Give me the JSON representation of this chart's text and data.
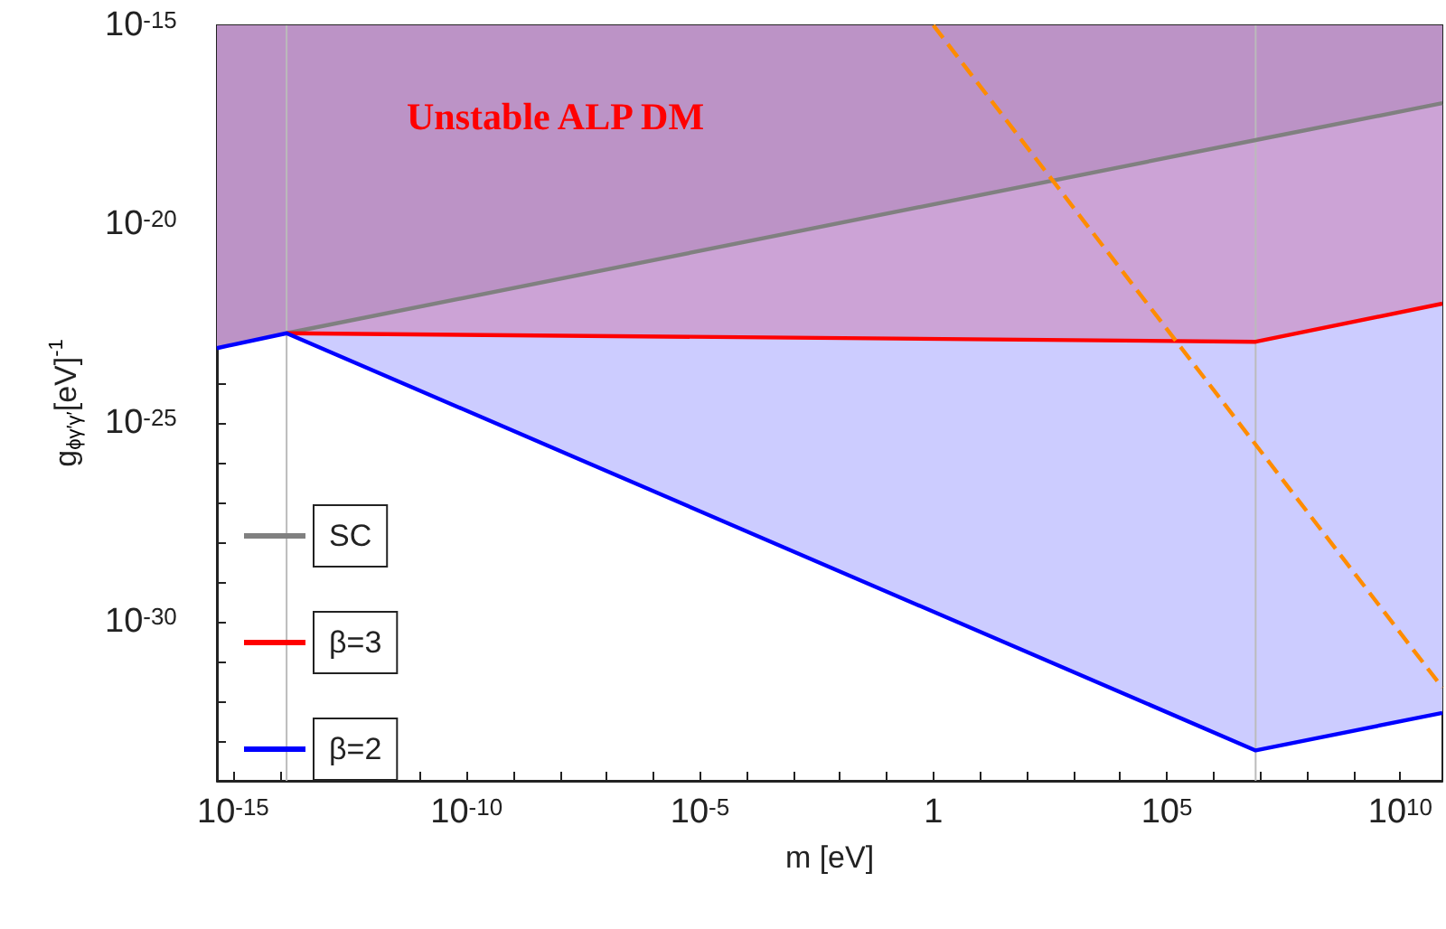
{
  "chart_data": {
    "type": "line",
    "xlabel": "m [eV]",
    "ylabel": "g$_{ϕγ′γ′}$[eV]$^{-1}$",
    "annotations": [
      "Unstable ALP DM"
    ],
    "log": "xy",
    "xlim": [
      4.5e-16,
      80000000000.0
    ],
    "ylim": [
      1e-34,
      1e-15
    ],
    "xticks": [
      {
        "value": 1e-15,
        "label": "10$^{-15}$"
      },
      {
        "value": 1e-14,
        "label": null
      },
      {
        "value": 1e-13,
        "label": null
      },
      {
        "value": 1e-12,
        "label": null
      },
      {
        "value": 1e-11,
        "label": null
      },
      {
        "value": 1e-10,
        "label": "10$^{-10}$"
      },
      {
        "value": 1e-09,
        "label": null
      },
      {
        "value": 1e-08,
        "label": null
      },
      {
        "value": 1e-07,
        "label": null
      },
      {
        "value": 1e-06,
        "label": null
      },
      {
        "value": 1e-05,
        "label": "10$^{-5}$"
      },
      {
        "value": 0.0001,
        "label": null
      },
      {
        "value": 0.001,
        "label": null
      },
      {
        "value": 0.01,
        "label": null
      },
      {
        "value": 0.1,
        "label": null
      },
      1,
      {
        "value": 10,
        "label": null
      },
      {
        "value": 100,
        "label": null
      },
      {
        "value": 1000,
        "label": null
      },
      {
        "value": 10000,
        "label": null
      },
      {
        "value": 100000.0,
        "label": "10$^{5}$"
      },
      {
        "value": 1000000.0,
        "label": null
      },
      {
        "value": 10000000.0,
        "label": null
      },
      {
        "value": 100000000.0,
        "label": null
      },
      {
        "value": 1000000000.0,
        "label": null
      },
      {
        "value": 10000000000.0,
        "label": "10$^{10}$"
      }
    ],
    "yticks": [
      {
        "value": 1e-34,
        "label": null
      },
      {
        "value": 1e-33,
        "label": null
      },
      {
        "value": 1e-32,
        "label": null
      },
      {
        "value": 1e-31,
        "label": null
      },
      {
        "value": 1e-30,
        "label": "10$^{-30}$"
      },
      {
        "value": 1e-29,
        "label": null
      },
      {
        "value": 1e-28,
        "label": null
      },
      {
        "value": 1e-27,
        "label": null
      },
      {
        "value": 1e-26,
        "label": null
      },
      {
        "value": 1e-25,
        "label": "10$^{-25}$"
      },
      {
        "value": 1e-24,
        "label": null
      },
      {
        "value": 1e-23,
        "label": null
      },
      {
        "value": 1e-22,
        "label": null
      },
      {
        "value": 1e-21,
        "label": null
      },
      {
        "value": 1e-20,
        "label": "10$^{-20}$"
      },
      {
        "value": 1e-19,
        "label": null
      },
      {
        "value": 1e-18,
        "label": null
      },
      {
        "value": 1e-17,
        "label": null
      },
      {
        "value": 1e-16,
        "label": null
      },
      {
        "value": 1e-15,
        "label": "10$^{-15}$"
      }
    ],
    "grid": false,
    "legend": "left",
    "ref_lines": [
      {
        "axis": "x",
        "value": 1.4e-14,
        "color": "#bbbbbb"
      },
      {
        "axis": "x",
        "value": 8000000.0,
        "color": "#bbbbbb"
      }
    ],
    "series": [
      {
        "name": "SC",
        "color": "#808080",
        "x": [
          4.5e-16,
          1.4e-14,
          8000000.0,
          80000000000.0
        ],
        "values": [
          null,
          1.8e-23,
          1.3e-18,
          1.1e-17
        ],
        "lower": [
          7.6e-24,
          1.8e-23,
          1.3e-18,
          1.1e-17
        ],
        "upper": [
          1e-15,
          1e-15,
          1e-15,
          1e-15
        ]
      },
      {
        "name": "β=3",
        "color": "#ff0000",
        "x": [
          4.5e-16,
          1.4e-14,
          8000000.0,
          80000000000.0
        ],
        "values": [
          null,
          1.8e-23,
          1.1e-23,
          1e-22
        ],
        "lower": [
          7.6e-24,
          1.8e-23,
          1.1e-23,
          1e-22
        ],
        "upper": [
          7.6e-24,
          1.8e-23,
          1.3e-18,
          1.1e-17
        ]
      },
      {
        "name": "β=2",
        "color": "#0000ff",
        "x": [
          4.5e-16,
          1.4e-14,
          8000000.0,
          80000000000.0
        ],
        "values": [
          7.6e-24,
          1.8e-23,
          5.8e-34,
          5.1e-33
        ],
        "lower": [
          7.6e-24,
          1.8e-23,
          5.8e-34,
          5.1e-33
        ],
        "upper": [
          7.6e-24,
          1.8e-23,
          1.1e-23,
          1e-22
        ]
      },
      {
        "color": "#ff8c00",
        "line_style": "dashed",
        "x": [
          1,
          80000000000.0
        ],
        "values": [
          1e-15,
          2.2e-32
        ]
      }
    ]
  }
}
